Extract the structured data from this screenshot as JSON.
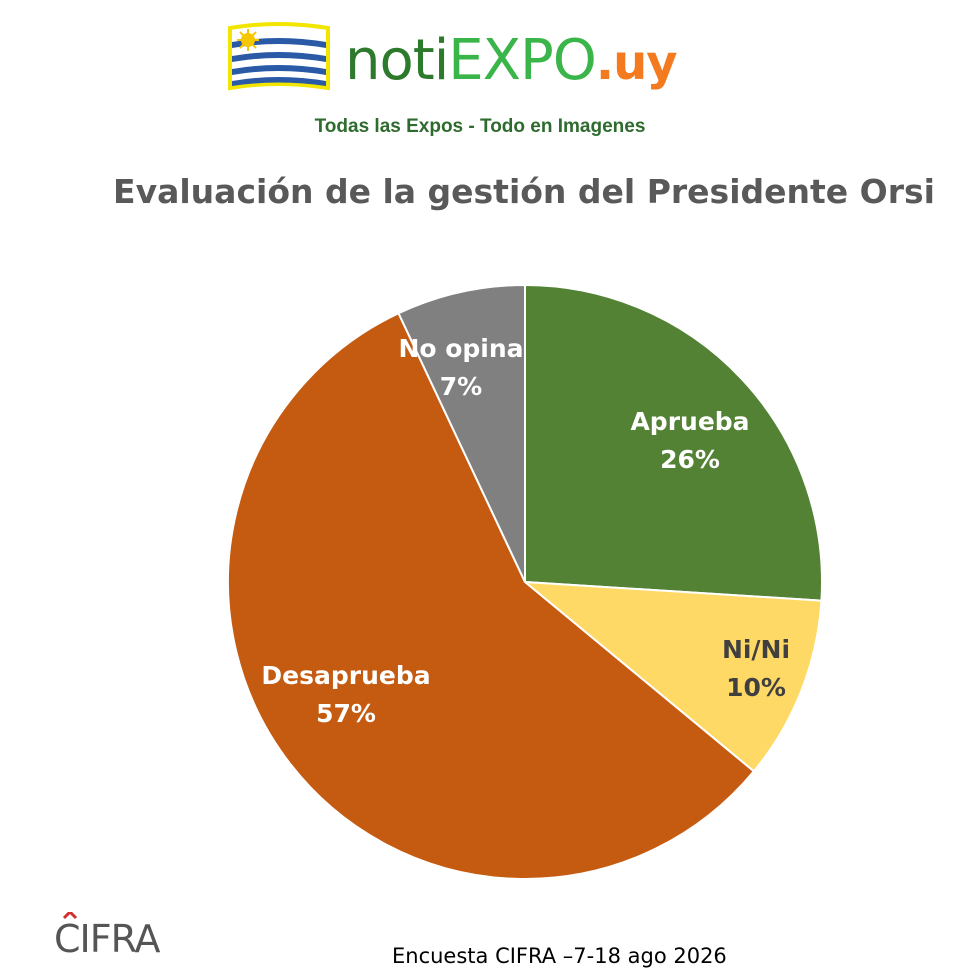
{
  "header": {
    "brand_part1": "noti",
    "brand_part2": "EXPO",
    "brand_part3": ".uy",
    "tagline": "Todas las Expos - Todo en Imagenes"
  },
  "chart_data": {
    "type": "pie",
    "title": "Evaluación de la gestión del Presidente Orsi",
    "slices": [
      {
        "label": "Aprueba",
        "value": 26,
        "display": "26%",
        "color": "#548235",
        "label_color": "#ffffff"
      },
      {
        "label": "Ni/Ni",
        "value": 10,
        "display": "10%",
        "color": "#ffd966",
        "label_color": "#404040"
      },
      {
        "label": "Desaprueba",
        "value": 57,
        "display": "57%",
        "color": "#c55a11",
        "label_color": "#ffffff"
      },
      {
        "label": "No opina",
        "value": 7,
        "display": "7%",
        "color": "#808080",
        "label_color": "#ffffff"
      }
    ],
    "start_angle": "12 o'clock",
    "direction": "clockwise"
  },
  "footer": {
    "logo_text": "CIFRA",
    "source": "Encuesta CIFRA –7-18 ago 2026"
  }
}
